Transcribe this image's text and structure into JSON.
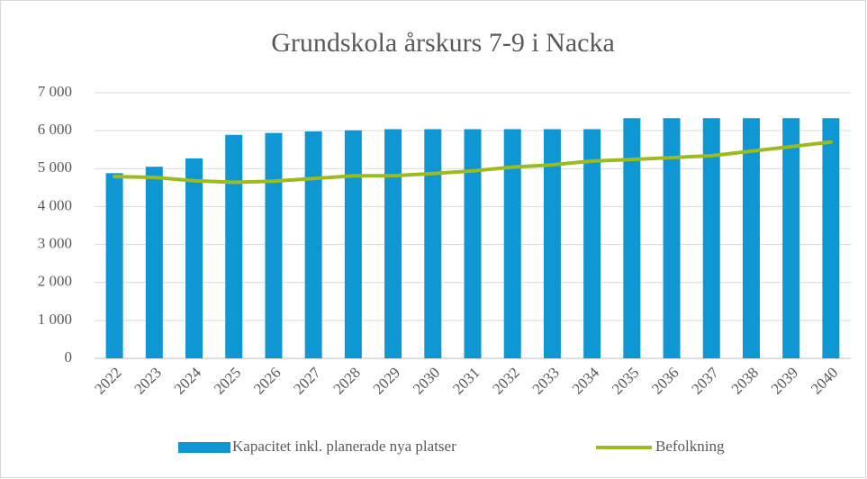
{
  "chart_data": {
    "type": "bar",
    "title": "Grundskola årskurs 7-9 i Nacka",
    "categories": [
      "2022",
      "2023",
      "2024",
      "2025",
      "2026",
      "2027",
      "2028",
      "2029",
      "2030",
      "2031",
      "2032",
      "2033",
      "2034",
      "2035",
      "2036",
      "2037",
      "2038",
      "2039",
      "2040"
    ],
    "series": [
      {
        "name": "Kapacitet inkl. planerade nya platser",
        "type": "bar",
        "color": "#0f97d3",
        "values": [
          4880,
          5050,
          5270,
          5890,
          5940,
          5980,
          6010,
          6040,
          6040,
          6040,
          6040,
          6040,
          6040,
          6330,
          6330,
          6330,
          6330,
          6330,
          6330
        ]
      },
      {
        "name": "Befolkning",
        "type": "line",
        "color": "#9bbb1e",
        "values": [
          4790,
          4770,
          4680,
          4640,
          4670,
          4740,
          4810,
          4810,
          4870,
          4940,
          5040,
          5100,
          5200,
          5240,
          5290,
          5340,
          5460,
          5580,
          5700
        ]
      }
    ],
    "ylim": [
      0,
      7000
    ],
    "yticks": [
      0,
      {
        "value": 1000,
        "label": "1 000"
      },
      {
        "value": 2000,
        "label": "2 000"
      },
      {
        "value": 3000,
        "label": "3 000"
      },
      {
        "value": 4000,
        "label": "4 000"
      },
      {
        "value": 5000,
        "label": "5 000"
      },
      {
        "value": 6000,
        "label": "6 000"
      },
      {
        "value": 7000,
        "label": "7 000"
      }
    ],
    "grid": true,
    "legend": "bottom"
  }
}
